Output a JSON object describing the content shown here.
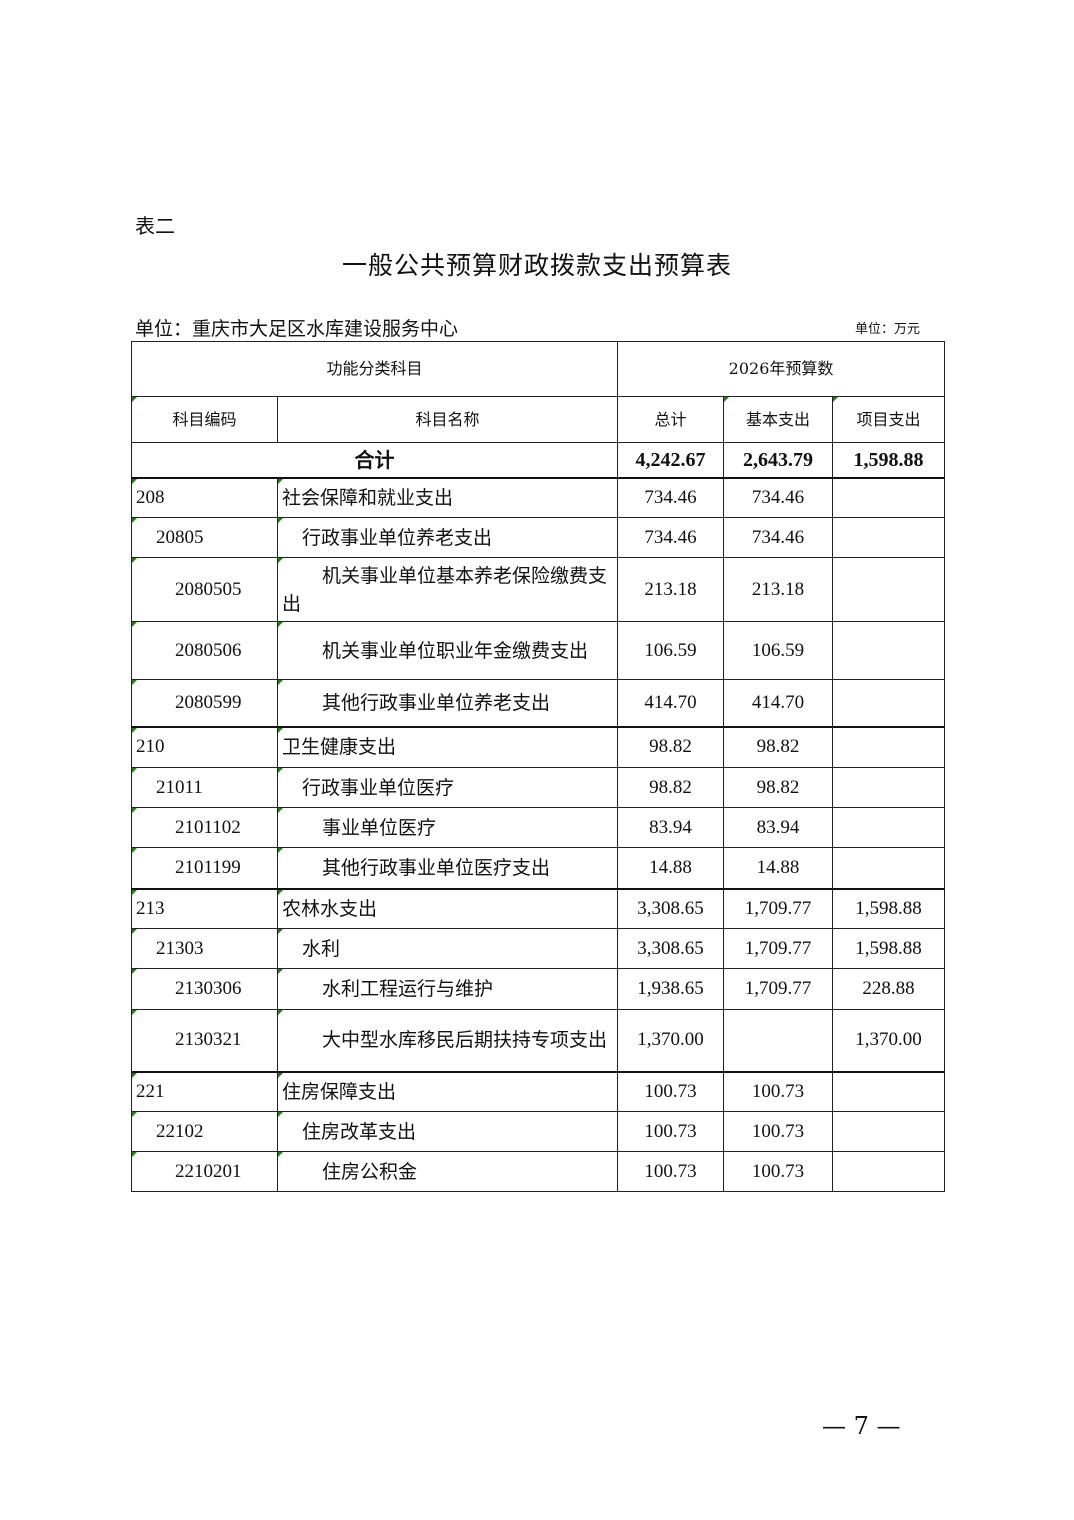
{
  "table_label": "表二",
  "title": "一般公共预算财政拨款支出预算表",
  "unit_left": "单位：重庆市大足区水库建设服务中心",
  "unit_right": "单位：万元",
  "header": {
    "group_left": "功能分类科目",
    "group_right": "2026年预算数",
    "columns": [
      "科目编码",
      "科目名称",
      "总计",
      "基本支出",
      "项目支出"
    ]
  },
  "total": {
    "label": "合计",
    "total": "4,242.67",
    "basic": "2,643.79",
    "project": "1,598.88"
  },
  "rows": [
    {
      "code": "208",
      "name": "社会保障和就业支出",
      "total": "734.46",
      "basic": "734.46",
      "project": "",
      "level": 1
    },
    {
      "code": "20805",
      "name": "行政事业单位养老支出",
      "total": "734.46",
      "basic": "734.46",
      "project": "",
      "level": 2
    },
    {
      "code": "2080505",
      "name": "机关事业单位基本养老保险缴费支出",
      "total": "213.18",
      "basic": "213.18",
      "project": "",
      "level": 3
    },
    {
      "code": "2080506",
      "name": "机关事业单位职业年金缴费支出",
      "total": "106.59",
      "basic": "106.59",
      "project": "",
      "level": 3
    },
    {
      "code": "2080599",
      "name": "其他行政事业单位养老支出",
      "total": "414.70",
      "basic": "414.70",
      "project": "",
      "level": 3
    },
    {
      "code": "210",
      "name": "卫生健康支出",
      "total": "98.82",
      "basic": "98.82",
      "project": "",
      "level": 1
    },
    {
      "code": "21011",
      "name": "行政事业单位医疗",
      "total": "98.82",
      "basic": "98.82",
      "project": "",
      "level": 2
    },
    {
      "code": "2101102",
      "name": "事业单位医疗",
      "total": "83.94",
      "basic": "83.94",
      "project": "",
      "level": 3
    },
    {
      "code": "2101199",
      "name": "其他行政事业单位医疗支出",
      "total": "14.88",
      "basic": "14.88",
      "project": "",
      "level": 3
    },
    {
      "code": "213",
      "name": "农林水支出",
      "total": "3,308.65",
      "basic": "1,709.77",
      "project": "1,598.88",
      "level": 1
    },
    {
      "code": "21303",
      "name": "水利",
      "total": "3,308.65",
      "basic": "1,709.77",
      "project": "1,598.88",
      "level": 2
    },
    {
      "code": "2130306",
      "name": "水利工程运行与维护",
      "total": "1,938.65",
      "basic": "1,709.77",
      "project": "228.88",
      "level": 3
    },
    {
      "code": "2130321",
      "name": "大中型水库移民后期扶持专项支出",
      "total": "1,370.00",
      "basic": "",
      "project": "1,370.00",
      "level": 3
    },
    {
      "code": "221",
      "name": "住房保障支出",
      "total": "100.73",
      "basic": "100.73",
      "project": "",
      "level": 1
    },
    {
      "code": "22102",
      "name": "住房改革支出",
      "total": "100.73",
      "basic": "100.73",
      "project": "",
      "level": 2
    },
    {
      "code": "2210201",
      "name": "住房公积金",
      "total": "100.73",
      "basic": "100.73",
      "project": "",
      "level": 3
    }
  ],
  "page_number": "— 7 —"
}
